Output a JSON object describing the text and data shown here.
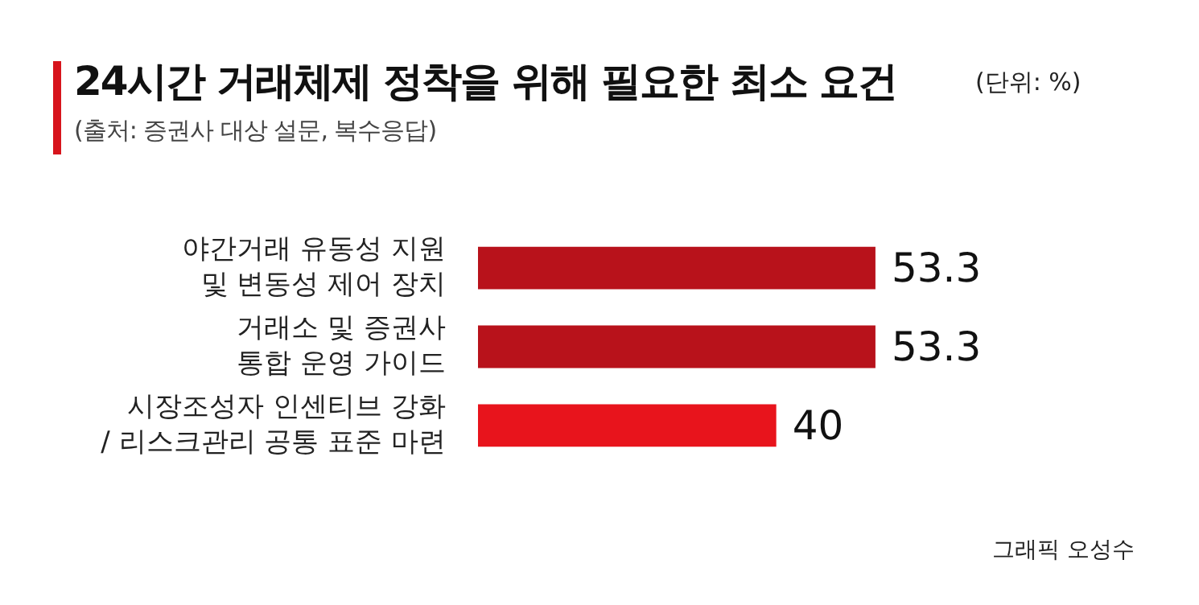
{
  "chart_data": {
    "type": "bar",
    "orientation": "horizontal",
    "title": "24시간 거래체제 정착을 위해 필요한 최소 요건",
    "subtitle": "(출처: 증권사 대상 설문, 복수응답)",
    "annotations": [
      "(단위: %)",
      "그래픽 오성수"
    ],
    "categories": [
      "야간거래 유동성 지원\n및 변동성 제어 장치",
      "거래소 및 증권사\n통합 운영 가이드",
      "시장조성자 인센티브 강화\n/ 리스크관리 공통 표준 마련"
    ],
    "values": [
      53.3,
      53.3,
      40
    ],
    "colors": [
      "#b8121b",
      "#b8121b",
      "#e8141c"
    ],
    "data_labels": true
  }
}
